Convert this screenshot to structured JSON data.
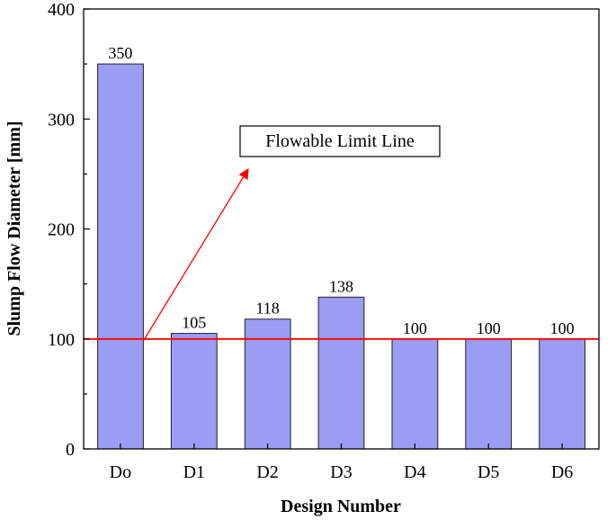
{
  "chart_data": {
    "type": "bar",
    "categories": [
      "Do",
      "D1",
      "D2",
      "D3",
      "D4",
      "D5",
      "D6"
    ],
    "values": [
      350,
      105,
      118,
      138,
      100,
      100,
      100
    ],
    "data_labels": [
      "350",
      "105",
      "118",
      "138",
      "100",
      "100",
      "100"
    ],
    "xlabel": "Design Number",
    "ylabel": "Slump Flow Diameter [mm]",
    "ylim": [
      0,
      400
    ],
    "yticks": [
      0,
      100,
      200,
      300,
      400
    ],
    "ytick_labels": [
      "0",
      "100",
      "200",
      "300",
      "400"
    ],
    "grid": false,
    "reference_line": {
      "y": 100,
      "color": "#ff0000"
    },
    "annotation": {
      "text": "Flowable Limit Line",
      "arrow_color": "#ff0000"
    },
    "colors": {
      "bar": "#9a9df2",
      "bar_edge": "#222222",
      "limit_line": "#ff0000"
    }
  }
}
